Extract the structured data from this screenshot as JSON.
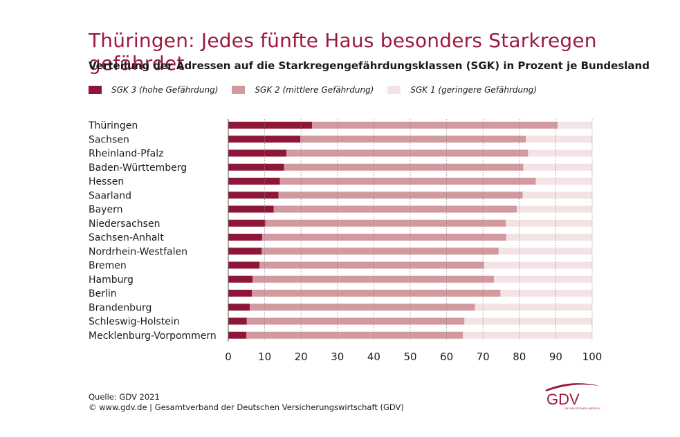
{
  "title": "Thüringen: Jedes fünfte Haus besonders Starkregen gefährdet",
  "subtitle": "Verteilung der Adressen auf die Starkregengefährdungsklassen (SGK) in Prozent je Bundesland",
  "source": {
    "line1": "Quelle: GDV 2021",
    "line2": "© www.gdv.de | Gesamtverband der Deutschen Versicherungswirtschaft (GDV)"
  },
  "logo": {
    "text": "GDV",
    "tagline": "DIE DEUTSCHEN VERSICHERER",
    "color": "#9a1b3e"
  },
  "chart_data": {
    "type": "bar",
    "orientation": "horizontal",
    "stacked": true,
    "categories": [
      "Thüringen",
      "Sachsen",
      "Rheinland-Pfalz",
      "Baden-Württemberg",
      "Hessen",
      "Saarland",
      "Bayern",
      "Niedersachsen",
      "Sachsen-Anhalt",
      "Nordrhein-Westfalen",
      "Bremen",
      "Hamburg",
      "Berlin",
      "Brandenburg",
      "Schleswig-Holstein",
      "Mecklenburg-Vorpommern"
    ],
    "series": [
      {
        "name": "SGK 3 (hohe Gefährdung)",
        "color": "#8e1638",
        "values": [
          23.0,
          19.8,
          16.0,
          15.3,
          14.2,
          13.8,
          12.5,
          10.2,
          9.3,
          9.2,
          8.6,
          6.7,
          6.5,
          5.9,
          5.1,
          5.0
        ]
      },
      {
        "name": "SGK 2 (mittlere Gefährdung)",
        "color": "#d29a9f",
        "values": [
          67.5,
          62.0,
          66.4,
          65.8,
          70.3,
          67.1,
          66.8,
          66.1,
          67.1,
          65.1,
          61.7,
          66.3,
          68.3,
          61.9,
          59.8,
          59.5
        ]
      },
      {
        "name": "SGK 1 (geringere Gefährdung)",
        "color": "#f3e3e5",
        "values": [
          9.5,
          18.2,
          17.6,
          18.9,
          15.5,
          19.1,
          20.7,
          23.7,
          23.6,
          25.7,
          29.7,
          27.0,
          25.2,
          32.2,
          35.1,
          35.5
        ]
      }
    ],
    "xlim": [
      0,
      100
    ],
    "xticks": [
      "0",
      "10",
      "20",
      "30",
      "40",
      "50",
      "60",
      "70",
      "80",
      "90",
      "100"
    ],
    "grid": "vertical dotted",
    "legend": "top-left"
  }
}
